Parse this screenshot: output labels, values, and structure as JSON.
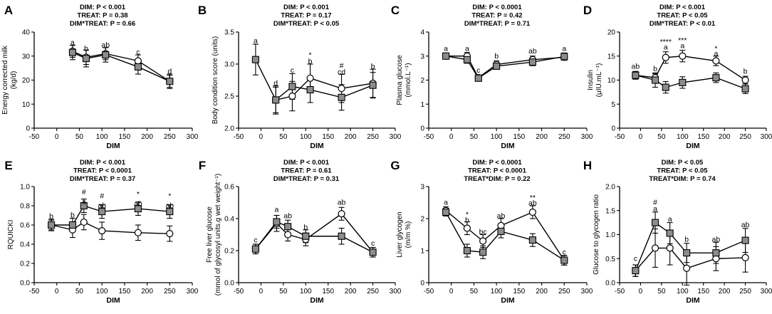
{
  "colors": {
    "ink": "#000000",
    "treat_fill": "#8c8c8c",
    "control_fill": "#ffffff"
  },
  "chart_data": [
    {
      "type": "line",
      "letter": "A",
      "ylabel": "Energy corrected milk",
      "ylabel2": "(kg/d)",
      "xlabel": "DIM",
      "xlim": [
        -50,
        300
      ],
      "xticks": [
        -50,
        0,
        50,
        100,
        150,
        200,
        250,
        300
      ],
      "ylim": [
        0,
        40
      ],
      "yticks": [
        0,
        10,
        20,
        30,
        40
      ],
      "stats": [
        "DIM: P < 0.001",
        "TREAT: P = 0.38",
        "DIM*TREAT: P = 0.66"
      ],
      "series": [
        {
          "name": "circle",
          "x": [
            35,
            65,
            108,
            180,
            250
          ],
          "y": [
            32,
            29.5,
            31,
            28,
            19.5
          ],
          "err": [
            2.5,
            3,
            2.5,
            2.5,
            2.5
          ]
        },
        {
          "name": "square",
          "x": [
            35,
            65,
            108,
            180,
            250
          ],
          "y": [
            31.5,
            29,
            30.5,
            25.5,
            19.5
          ],
          "err": [
            3,
            3.5,
            3,
            3,
            3
          ]
        }
      ],
      "annotations": [
        {
          "x": 35,
          "y": 35.5,
          "text": "a"
        },
        {
          "x": 65,
          "y": 33,
          "text": "b"
        },
        {
          "x": 108,
          "y": 34.5,
          "text": "ab"
        },
        {
          "x": 180,
          "y": 31.5,
          "text": "c"
        },
        {
          "x": 250,
          "y": 23.5,
          "text": "d"
        }
      ]
    },
    {
      "type": "line",
      "letter": "B",
      "ylabel": "Body condition score (units)",
      "ylabel2": "",
      "xlabel": "DIM",
      "xlim": [
        -50,
        300
      ],
      "xticks": [
        -50,
        0,
        50,
        100,
        150,
        200,
        250,
        300
      ],
      "ylim": [
        2.0,
        3.5
      ],
      "yticks": [
        2.0,
        2.5,
        3.0,
        3.5
      ],
      "ydec": 1,
      "stats": [
        "DIM: P < 0.001",
        "TREAT: P = 0.17",
        "DIM*TREAT: P < 0.05"
      ],
      "series": [
        {
          "name": "circle",
          "x": [
            33,
            70,
            110,
            180,
            250
          ],
          "y": [
            2.44,
            2.5,
            2.78,
            2.62,
            2.7
          ],
          "err": [
            0.22,
            0.23,
            0.22,
            0.22,
            0.22
          ]
        },
        {
          "name": "square",
          "x": [
            -12,
            33,
            70,
            110,
            180,
            250
          ],
          "y": [
            3.07,
            2.44,
            2.65,
            2.6,
            2.48,
            2.67
          ],
          "err": [
            0.24,
            0.2,
            0.2,
            0.2,
            0.2,
            0.2
          ]
        }
      ],
      "annotations": [
        {
          "x": -12,
          "y": 3.36,
          "text": "a"
        },
        {
          "x": 33,
          "y": 2.7,
          "text": "d"
        },
        {
          "x": 70,
          "y": 2.9,
          "text": "c"
        },
        {
          "x": 110,
          "y": 3.14,
          "text": "*"
        },
        {
          "x": 110,
          "y": 3.04,
          "text": "b"
        },
        {
          "x": 180,
          "y": 2.97,
          "text": "#"
        },
        {
          "x": 180,
          "y": 2.87,
          "text": "cd"
        },
        {
          "x": 250,
          "y": 2.96,
          "text": "b"
        }
      ]
    },
    {
      "type": "line",
      "letter": "C",
      "ylabel": "Plasma glucose",
      "ylabel2": "(mmol.L⁻¹)",
      "xlabel": "DIM",
      "xlim": [
        -50,
        300
      ],
      "xticks": [
        -50,
        0,
        50,
        100,
        150,
        200,
        250,
        300
      ],
      "ylim": [
        0,
        4
      ],
      "yticks": [
        0,
        1,
        2,
        3,
        4
      ],
      "stats": [
        "DIM: P < 0.0001",
        "TREAT: P = 0.42",
        "DIM*TREAT: P = 0.71"
      ],
      "series": [
        {
          "name": "circle",
          "x": [
            -12,
            35,
            60,
            100,
            180,
            250
          ],
          "y": [
            3.0,
            3.0,
            2.1,
            2.65,
            2.85,
            2.95
          ],
          "err": [
            0.08,
            0.15,
            0.1,
            0.15,
            0.15,
            0.12
          ]
        },
        {
          "name": "square",
          "x": [
            -12,
            35,
            60,
            100,
            180,
            250
          ],
          "y": [
            3.0,
            2.85,
            2.08,
            2.58,
            2.75,
            2.98
          ],
          "err": [
            0.08,
            0.15,
            0.1,
            0.12,
            0.15,
            0.15
          ]
        }
      ],
      "annotations": [
        {
          "x": -12,
          "y": 3.3,
          "text": "a"
        },
        {
          "x": 35,
          "y": 3.3,
          "text": "a"
        },
        {
          "x": 60,
          "y": 2.4,
          "text": "c"
        },
        {
          "x": 100,
          "y": 3.0,
          "text": "b"
        },
        {
          "x": 180,
          "y": 3.2,
          "text": "ab"
        },
        {
          "x": 250,
          "y": 3.3,
          "text": "a"
        }
      ]
    },
    {
      "type": "line",
      "letter": "D",
      "ylabel": "Insulin",
      "ylabel2": "(μIU.mL⁻¹)",
      "xlabel": "DIM",
      "xlim": [
        -50,
        300
      ],
      "xticks": [
        -50,
        0,
        50,
        100,
        150,
        200,
        250,
        300
      ],
      "ylim": [
        0,
        20
      ],
      "yticks": [
        0,
        5,
        10,
        15,
        20
      ],
      "stats": [
        "DIM: P < 0.001",
        "TREAT: P < 0.05",
        "DIM*TREAT: P < 0.01"
      ],
      "series": [
        {
          "name": "circle",
          "x": [
            -12,
            35,
            60,
            100,
            180,
            250
          ],
          "y": [
            11,
            10.5,
            14.7,
            15,
            14,
            10
          ],
          "err": [
            0.8,
            0.8,
            1.2,
            1.2,
            1.0,
            0.8
          ]
        },
        {
          "name": "square",
          "x": [
            -12,
            35,
            60,
            100,
            180,
            250
          ],
          "y": [
            11,
            10,
            8.5,
            9.5,
            10.5,
            8.2
          ],
          "err": [
            0.8,
            1.5,
            1.2,
            1.2,
            1.0,
            1.0
          ]
        }
      ],
      "annotations": [
        {
          "x": -12,
          "y": 12.8,
          "text": "ab"
        },
        {
          "x": 35,
          "y": 12.3,
          "text": "b"
        },
        {
          "x": 60,
          "y": 17.9,
          "text": "****"
        },
        {
          "x": 60,
          "y": 16.8,
          "text": "a"
        },
        {
          "x": 100,
          "y": 18.2,
          "text": "***"
        },
        {
          "x": 100,
          "y": 17.1,
          "text": "a"
        },
        {
          "x": 180,
          "y": 16.5,
          "text": "*"
        },
        {
          "x": 180,
          "y": 15.5,
          "text": "a"
        },
        {
          "x": 250,
          "y": 11.8,
          "text": "b"
        }
      ]
    },
    {
      "type": "line",
      "letter": "E",
      "ylabel": "RQUICKI",
      "ylabel2": "",
      "xlabel": "DIM",
      "xlim": [
        -50,
        300
      ],
      "xticks": [
        -50,
        0,
        50,
        100,
        150,
        200,
        250,
        300
      ],
      "ylim": [
        0.0,
        1.0
      ],
      "yticks": [
        0.0,
        0.2,
        0.4,
        0.6,
        0.8,
        1.0
      ],
      "ydec": 1,
      "stats": [
        "DIM: P < 0.001",
        "TREAT: P < 0.0001",
        "DIM*TREAT: P = 0.37"
      ],
      "series": [
        {
          "name": "circle",
          "x": [
            -12,
            35,
            60,
            100,
            180,
            250
          ],
          "y": [
            0.6,
            0.55,
            0.63,
            0.54,
            0.52,
            0.51
          ],
          "err": [
            0.06,
            0.08,
            0.08,
            0.09,
            0.08,
            0.08
          ]
        },
        {
          "name": "square",
          "x": [
            -12,
            35,
            60,
            100,
            180,
            250
          ],
          "y": [
            0.6,
            0.6,
            0.8,
            0.74,
            0.77,
            0.74
          ],
          "err": [
            0.05,
            0.07,
            0.07,
            0.07,
            0.07,
            0.07
          ]
        }
      ],
      "annotations": [
        {
          "x": -12,
          "y": 0.69,
          "text": "b"
        },
        {
          "x": 35,
          "y": 0.7,
          "text": "b"
        },
        {
          "x": 60,
          "y": 0.94,
          "text": "#"
        },
        {
          "x": 60,
          "y": 0.84,
          "text": "a"
        },
        {
          "x": 100,
          "y": 0.9,
          "text": "#"
        },
        {
          "x": 100,
          "y": 0.8,
          "text": "ab"
        },
        {
          "x": 180,
          "y": 0.92,
          "text": "*"
        },
        {
          "x": 180,
          "y": 0.82,
          "text": "ab"
        },
        {
          "x": 250,
          "y": 0.9,
          "text": "*"
        },
        {
          "x": 250,
          "y": 0.8,
          "text": "ab"
        }
      ]
    },
    {
      "type": "line",
      "letter": "F",
      "ylabel": "Free liver glucose",
      "ylabel2": "(mmol of glycosyl units.g wet weight⁻¹)",
      "xlabel": "DIM",
      "xlim": [
        -50,
        300
      ],
      "xticks": [
        -50,
        0,
        50,
        100,
        150,
        200,
        250,
        300
      ],
      "ylim": [
        0.0,
        0.6
      ],
      "yticks": [
        0.0,
        0.2,
        0.4,
        0.6
      ],
      "ydec": 1,
      "stats": [
        "DIM: P < 0.001",
        "TREAT: P = 0.61",
        "DIM*TREAT: P = 0.31"
      ],
      "series": [
        {
          "name": "circle",
          "x": [
            -12,
            35,
            60,
            100,
            180,
            250
          ],
          "y": [
            0.21,
            0.37,
            0.3,
            0.27,
            0.43,
            0.19
          ],
          "err": [
            0.03,
            0.05,
            0.04,
            0.04,
            0.04,
            0.03
          ]
        },
        {
          "name": "square",
          "x": [
            -12,
            35,
            60,
            100,
            180,
            250
          ],
          "y": [
            0.21,
            0.38,
            0.35,
            0.29,
            0.29,
            0.19
          ],
          "err": [
            0.03,
            0.04,
            0.04,
            0.04,
            0.05,
            0.03
          ]
        }
      ],
      "annotations": [
        {
          "x": -12,
          "y": 0.265,
          "text": "c"
        },
        {
          "x": 35,
          "y": 0.455,
          "text": "a"
        },
        {
          "x": 60,
          "y": 0.415,
          "text": "ab"
        },
        {
          "x": 100,
          "y": 0.345,
          "text": "b"
        },
        {
          "x": 180,
          "y": 0.5,
          "text": "ab"
        },
        {
          "x": 250,
          "y": 0.245,
          "text": "c"
        }
      ]
    },
    {
      "type": "line",
      "letter": "G",
      "ylabel": "Liver glycogen",
      "ylabel2": "(m/m %)",
      "xlabel": "DIM",
      "xlim": [
        -50,
        300
      ],
      "xticks": [
        -50,
        0,
        50,
        100,
        150,
        200,
        250,
        300
      ],
      "ylim": [
        0,
        3
      ],
      "yticks": [
        0,
        1,
        2,
        3
      ],
      "stats": [
        "DIM: P < 0.0001",
        "TREAT: P < 0.0001",
        "TREAT*DIM: P = 0.22"
      ],
      "series": [
        {
          "name": "circle",
          "x": [
            -12,
            35,
            70,
            110,
            180,
            250
          ],
          "y": [
            2.25,
            1.7,
            1.3,
            1.78,
            2.2,
            0.7
          ],
          "err": [
            0.12,
            0.2,
            0.2,
            0.22,
            0.2,
            0.15
          ]
        },
        {
          "name": "square",
          "x": [
            -12,
            35,
            70,
            110,
            180,
            250
          ],
          "y": [
            2.2,
            1.0,
            0.95,
            1.6,
            1.33,
            0.7
          ],
          "err": [
            0.12,
            0.2,
            0.2,
            0.2,
            0.2,
            0.15
          ]
        }
      ],
      "annotations": [
        {
          "x": -12,
          "y": 2.5,
          "text": "a"
        },
        {
          "x": 35,
          "y": 2.12,
          "text": "*"
        },
        {
          "x": 35,
          "y": 1.95,
          "text": "b"
        },
        {
          "x": 70,
          "y": 1.58,
          "text": "bc"
        },
        {
          "x": 110,
          "y": 2.08,
          "text": "ab"
        },
        {
          "x": 180,
          "y": 2.65,
          "text": "**"
        },
        {
          "x": 180,
          "y": 2.48,
          "text": "ab"
        },
        {
          "x": 250,
          "y": 0.95,
          "text": "c"
        }
      ]
    },
    {
      "type": "line",
      "letter": "H",
      "ylabel": "Glucose to glycogen ratio",
      "ylabel2": "",
      "xlabel": "DIM",
      "xlim": [
        -50,
        300
      ],
      "xticks": [
        -50,
        0,
        50,
        100,
        150,
        200,
        250,
        300
      ],
      "ylim": [
        0.0,
        2.0
      ],
      "yticks": [
        0.0,
        0.5,
        1.0,
        1.5,
        2.0
      ],
      "ydec": 1,
      "stats": [
        "DIM: P < 0.05",
        "TREAT: P < 0.05",
        "TREAT*DIM: P = 0.74"
      ],
      "series": [
        {
          "name": "circle",
          "x": [
            -12,
            35,
            70,
            110,
            180,
            250
          ],
          "y": [
            0.25,
            0.72,
            0.72,
            0.3,
            0.5,
            0.52
          ],
          "err": [
            0.12,
            0.4,
            0.35,
            0.35,
            0.25,
            0.3
          ]
        },
        {
          "name": "square",
          "x": [
            -12,
            35,
            70,
            110,
            180,
            250
          ],
          "y": [
            0.25,
            1.25,
            1.03,
            0.62,
            0.62,
            0.88
          ],
          "err": [
            0.12,
            0.22,
            0.22,
            0.2,
            0.22,
            0.25
          ]
        }
      ],
      "annotations": [
        {
          "x": -12,
          "y": 0.5,
          "text": "c"
        },
        {
          "x": 35,
          "y": 1.67,
          "text": "#"
        },
        {
          "x": 35,
          "y": 1.53,
          "text": "a"
        },
        {
          "x": 70,
          "y": 1.32,
          "text": "a"
        },
        {
          "x": 110,
          "y": 0.9,
          "text": "b"
        },
        {
          "x": 180,
          "y": 0.9,
          "text": "ab"
        },
        {
          "x": 250,
          "y": 1.2,
          "text": "ab"
        }
      ]
    }
  ]
}
